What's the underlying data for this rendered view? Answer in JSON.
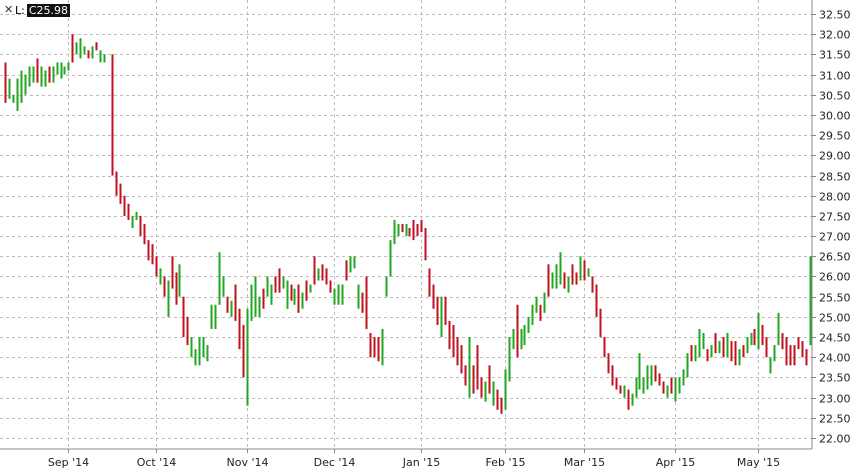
{
  "legend": {
    "close_icon": "close-x-icon",
    "symbol": "L:",
    "value": "C25.98"
  },
  "colors": {
    "up": "#22a722",
    "down": "#c0111f",
    "grid": "#bdbdbd",
    "frame": "#888888"
  },
  "chart_data": {
    "type": "ohlc",
    "ylim": [
      21.75,
      32.75
    ],
    "y_ticks": [
      "22.00",
      "22.50",
      "23.00",
      "23.50",
      "24.00",
      "24.50",
      "25.00",
      "25.50",
      "26.00",
      "26.50",
      "27.00",
      "27.50",
      "28.00",
      "28.50",
      "29.00",
      "29.50",
      "30.00",
      "30.50",
      "31.00",
      "31.50",
      "32.00",
      "32.50"
    ],
    "x_ticks": [
      {
        "label": "Sep '14",
        "bar": 17
      },
      {
        "label": "Oct '14",
        "bar": 39
      },
      {
        "label": "Nov '14",
        "bar": 62
      },
      {
        "label": "Dec '14",
        "bar": 84
      },
      {
        "label": "Jan '15",
        "bar": 106
      },
      {
        "label": "Feb '15",
        "bar": 127
      },
      {
        "label": "Mar '15",
        "bar": 147
      },
      {
        "label": "Apr '15",
        "bar": 170
      },
      {
        "label": "May '15",
        "bar": 191
      }
    ],
    "bar_count": 204,
    "bars": [
      [
        1,
        31.3,
        30.3,
        "d"
      ],
      [
        2,
        30.9,
        30.4,
        "u"
      ],
      [
        3,
        30.5,
        30.3,
        "u"
      ],
      [
        4,
        30.9,
        30.1,
        "u"
      ],
      [
        5,
        31.1,
        30.3,
        "u"
      ],
      [
        6,
        31.0,
        30.5,
        "u"
      ],
      [
        7,
        31.2,
        30.7,
        "u"
      ],
      [
        8,
        31.2,
        30.8,
        "u"
      ],
      [
        9,
        31.4,
        30.8,
        "d"
      ],
      [
        10,
        31.2,
        30.7,
        "u"
      ],
      [
        11,
        31.1,
        30.7,
        "u"
      ],
      [
        12,
        31.2,
        30.8,
        "d"
      ],
      [
        13,
        31.2,
        30.8,
        "u"
      ],
      [
        14,
        31.3,
        31.0,
        "u"
      ],
      [
        15,
        31.3,
        30.9,
        "u"
      ],
      [
        16,
        31.2,
        31.0,
        "u"
      ],
      [
        17,
        31.3,
        31.1,
        "u"
      ],
      [
        18,
        32.0,
        31.3,
        "d"
      ],
      [
        19,
        31.8,
        31.5,
        "u"
      ],
      [
        20,
        31.9,
        31.4,
        "u"
      ],
      [
        21,
        31.7,
        31.5,
        "u"
      ],
      [
        22,
        31.6,
        31.4,
        "d"
      ],
      [
        23,
        31.7,
        31.4,
        "u"
      ],
      [
        24,
        31.8,
        31.6,
        "d"
      ],
      [
        25,
        31.6,
        31.3,
        "u"
      ],
      [
        26,
        31.5,
        31.3,
        "u"
      ],
      [
        27,
        31.3,
        31.3,
        "d"
      ],
      [
        28,
        31.5,
        28.5,
        "d"
      ],
      [
        29,
        28.6,
        28.0,
        "d"
      ],
      [
        30,
        28.3,
        27.8,
        "d"
      ],
      [
        31,
        28.0,
        27.5,
        "d"
      ],
      [
        32,
        27.8,
        27.4,
        "d"
      ],
      [
        33,
        27.5,
        27.2,
        "u"
      ],
      [
        34,
        27.6,
        27.4,
        "u"
      ],
      [
        35,
        27.5,
        27.0,
        "d"
      ],
      [
        36,
        27.3,
        26.8,
        "d"
      ],
      [
        37,
        26.9,
        26.4,
        "d"
      ],
      [
        38,
        26.8,
        26.3,
        "d"
      ],
      [
        39,
        26.5,
        26.0,
        "d"
      ],
      [
        40,
        26.2,
        25.8,
        "u"
      ],
      [
        41,
        26.0,
        25.5,
        "d"
      ],
      [
        42,
        25.9,
        25.0,
        "u"
      ],
      [
        43,
        26.5,
        25.7,
        "d"
      ],
      [
        44,
        26.1,
        25.3,
        "d"
      ],
      [
        45,
        26.3,
        25.5,
        "u"
      ],
      [
        46,
        25.5,
        24.5,
        "d"
      ],
      [
        47,
        25.0,
        24.3,
        "d"
      ],
      [
        48,
        24.5,
        24.0,
        "u"
      ],
      [
        49,
        24.2,
        23.8,
        "u"
      ],
      [
        50,
        24.5,
        23.8,
        "u"
      ],
      [
        51,
        24.5,
        24.0,
        "u"
      ],
      [
        52,
        24.3,
        23.9,
        "u"
      ],
      [
        53,
        25.3,
        24.7,
        "u"
      ],
      [
        54,
        25.3,
        24.7,
        "u"
      ],
      [
        55,
        26.6,
        25.3,
        "u"
      ],
      [
        56,
        26.0,
        25.5,
        "u"
      ],
      [
        57,
        25.5,
        25.1,
        "d"
      ],
      [
        58,
        25.4,
        25.0,
        "u"
      ],
      [
        59,
        25.8,
        24.9,
        "d"
      ],
      [
        60,
        25.2,
        24.2,
        "d"
      ],
      [
        61,
        24.8,
        23.5,
        "d"
      ],
      [
        62,
        25.2,
        22.8,
        "u"
      ],
      [
        63,
        25.8,
        24.9,
        "u"
      ],
      [
        64,
        26.0,
        25.0,
        "u"
      ],
      [
        65,
        25.5,
        25.0,
        "u"
      ],
      [
        66,
        25.7,
        25.2,
        "d"
      ],
      [
        67,
        26.0,
        25.5,
        "u"
      ],
      [
        68,
        25.8,
        25.3,
        "u"
      ],
      [
        69,
        26.0,
        25.6,
        "d"
      ],
      [
        70,
        26.2,
        25.6,
        "d"
      ],
      [
        71,
        26.0,
        25.7,
        "u"
      ],
      [
        72,
        25.9,
        25.2,
        "u"
      ],
      [
        73,
        25.8,
        25.4,
        "d"
      ],
      [
        74,
        25.7,
        25.3,
        "u"
      ],
      [
        75,
        25.8,
        25.1,
        "d"
      ],
      [
        76,
        25.6,
        25.2,
        "u"
      ],
      [
        77,
        25.9,
        25.4,
        "d"
      ],
      [
        78,
        25.8,
        25.6,
        "u"
      ],
      [
        79,
        26.5,
        25.8,
        "d"
      ],
      [
        80,
        26.2,
        25.9,
        "u"
      ],
      [
        81,
        26.3,
        25.9,
        "d"
      ],
      [
        82,
        26.2,
        25.8,
        "d"
      ],
      [
        83,
        25.9,
        25.6,
        "d"
      ],
      [
        84,
        25.7,
        25.3,
        "u"
      ],
      [
        85,
        25.8,
        25.3,
        "u"
      ],
      [
        86,
        25.8,
        25.3,
        "u"
      ],
      [
        87,
        26.4,
        25.9,
        "d"
      ],
      [
        88,
        26.5,
        26.1,
        "u"
      ],
      [
        89,
        26.5,
        26.2,
        "u"
      ],
      [
        90,
        25.8,
        25.2,
        "u"
      ],
      [
        91,
        25.6,
        25.1,
        "d"
      ],
      [
        92,
        26.0,
        24.7,
        "d"
      ],
      [
        93,
        24.6,
        24.0,
        "d"
      ],
      [
        94,
        24.5,
        24.0,
        "d"
      ],
      [
        95,
        24.5,
        23.9,
        "d"
      ],
      [
        96,
        24.7,
        23.8,
        "u"
      ],
      [
        97,
        26.0,
        25.5,
        "u"
      ],
      [
        98,
        26.9,
        26.0,
        "u"
      ],
      [
        99,
        27.4,
        26.8,
        "u"
      ],
      [
        100,
        27.3,
        27.0,
        "u"
      ],
      [
        101,
        27.3,
        27.1,
        "d"
      ],
      [
        102,
        27.3,
        27.0,
        "u"
      ],
      [
        103,
        27.2,
        27.0,
        "d"
      ],
      [
        104,
        27.4,
        26.9,
        "d"
      ],
      [
        105,
        27.3,
        27.0,
        "d"
      ],
      [
        106,
        27.4,
        27.1,
        "d"
      ],
      [
        107,
        27.2,
        26.4,
        "d"
      ],
      [
        108,
        26.2,
        25.5,
        "d"
      ],
      [
        109,
        25.8,
        25.2,
        "d"
      ],
      [
        110,
        25.5,
        24.8,
        "d"
      ],
      [
        111,
        25.5,
        24.5,
        "u"
      ],
      [
        112,
        25.5,
        24.8,
        "d"
      ],
      [
        113,
        24.9,
        24.2,
        "d"
      ],
      [
        114,
        24.8,
        24.0,
        "d"
      ],
      [
        115,
        24.5,
        23.8,
        "d"
      ],
      [
        116,
        24.3,
        23.6,
        "d"
      ],
      [
        117,
        23.8,
        23.3,
        "d"
      ],
      [
        118,
        24.5,
        23.0,
        "u"
      ],
      [
        119,
        23.8,
        23.1,
        "d"
      ],
      [
        120,
        24.3,
        23.2,
        "d"
      ],
      [
        121,
        23.5,
        23.0,
        "d"
      ],
      [
        122,
        23.4,
        22.9,
        "u"
      ],
      [
        123,
        23.8,
        23.1,
        "d"
      ],
      [
        124,
        23.4,
        22.8,
        "u"
      ],
      [
        125,
        23.2,
        22.7,
        "d"
      ],
      [
        126,
        23.0,
        22.6,
        "d"
      ],
      [
        127,
        23.7,
        22.7,
        "u"
      ],
      [
        128,
        24.5,
        23.4,
        "u"
      ],
      [
        129,
        24.7,
        24.2,
        "u"
      ],
      [
        130,
        25.3,
        24.0,
        "d"
      ],
      [
        131,
        24.7,
        24.2,
        "u"
      ],
      [
        132,
        24.8,
        24.3,
        "u"
      ],
      [
        133,
        25.0,
        24.6,
        "u"
      ],
      [
        134,
        25.3,
        24.8,
        "u"
      ],
      [
        135,
        25.5,
        25.1,
        "u"
      ],
      [
        136,
        25.3,
        24.9,
        "d"
      ],
      [
        137,
        25.6,
        25.1,
        "u"
      ],
      [
        138,
        26.3,
        25.5,
        "d"
      ],
      [
        139,
        26.1,
        25.7,
        "u"
      ],
      [
        140,
        26.3,
        25.7,
        "u"
      ],
      [
        141,
        26.6,
        25.8,
        "u"
      ],
      [
        142,
        26.1,
        25.7,
        "d"
      ],
      [
        143,
        26.0,
        25.6,
        "u"
      ],
      [
        144,
        26.3,
        25.8,
        "d"
      ],
      [
        145,
        26.1,
        25.8,
        "d"
      ],
      [
        146,
        26.5,
        25.9,
        "u"
      ],
      [
        147,
        26.4,
        25.9,
        "d"
      ],
      [
        148,
        26.2,
        26.0,
        "u"
      ],
      [
        149,
        26.0,
        25.6,
        "d"
      ],
      [
        150,
        25.8,
        25.0,
        "d"
      ],
      [
        151,
        25.2,
        24.5,
        "d"
      ],
      [
        152,
        24.5,
        24.0,
        "d"
      ],
      [
        153,
        24.1,
        23.6,
        "d"
      ],
      [
        154,
        23.8,
        23.3,
        "d"
      ],
      [
        155,
        23.5,
        23.2,
        "d"
      ],
      [
        156,
        23.3,
        23.1,
        "d"
      ],
      [
        157,
        23.3,
        23.0,
        "u"
      ],
      [
        158,
        23.2,
        22.7,
        "d"
      ],
      [
        159,
        23.1,
        22.8,
        "u"
      ],
      [
        160,
        23.5,
        23.0,
        "u"
      ],
      [
        161,
        24.1,
        23.2,
        "u"
      ],
      [
        162,
        23.5,
        23.1,
        "u"
      ],
      [
        163,
        23.8,
        23.2,
        "u"
      ],
      [
        164,
        23.8,
        23.3,
        "u"
      ],
      [
        165,
        23.8,
        23.4,
        "d"
      ],
      [
        166,
        23.6,
        23.3,
        "d"
      ],
      [
        167,
        23.4,
        23.1,
        "d"
      ],
      [
        168,
        23.3,
        23.0,
        "u"
      ],
      [
        169,
        23.5,
        23.1,
        "d"
      ],
      [
        170,
        23.5,
        22.9,
        "u"
      ],
      [
        171,
        23.5,
        23.1,
        "u"
      ],
      [
        172,
        23.7,
        23.3,
        "u"
      ],
      [
        173,
        24.1,
        23.5,
        "u"
      ],
      [
        174,
        24.3,
        23.9,
        "d"
      ],
      [
        175,
        24.3,
        23.9,
        "u"
      ],
      [
        176,
        24.7,
        24.0,
        "u"
      ],
      [
        177,
        24.6,
        24.2,
        "u"
      ],
      [
        178,
        24.2,
        23.9,
        "d"
      ],
      [
        179,
        24.3,
        24.0,
        "u"
      ],
      [
        180,
        24.6,
        24.1,
        "d"
      ],
      [
        181,
        24.4,
        24.1,
        "u"
      ],
      [
        182,
        24.5,
        24.0,
        "d"
      ],
      [
        183,
        24.6,
        24.0,
        "u"
      ],
      [
        184,
        24.4,
        23.9,
        "d"
      ],
      [
        185,
        24.4,
        23.8,
        "d"
      ],
      [
        186,
        24.2,
        23.8,
        "u"
      ],
      [
        187,
        24.3,
        24.0,
        "d"
      ],
      [
        188,
        24.5,
        24.1,
        "u"
      ],
      [
        189,
        24.6,
        24.3,
        "u"
      ],
      [
        190,
        24.7,
        24.3,
        "d"
      ],
      [
        191,
        25.1,
        24.2,
        "u"
      ],
      [
        192,
        24.8,
        24.3,
        "d"
      ],
      [
        193,
        24.5,
        24.0,
        "d"
      ],
      [
        194,
        24.0,
        23.6,
        "u"
      ],
      [
        195,
        24.3,
        23.9,
        "u"
      ],
      [
        196,
        25.1,
        24.3,
        "u"
      ],
      [
        197,
        24.6,
        24.2,
        "d"
      ],
      [
        198,
        24.5,
        23.8,
        "d"
      ],
      [
        199,
        24.3,
        23.8,
        "d"
      ],
      [
        200,
        24.3,
        23.8,
        "d"
      ],
      [
        201,
        24.5,
        24.2,
        "d"
      ],
      [
        202,
        24.4,
        24.0,
        "d"
      ],
      [
        203,
        24.2,
        23.8,
        "d"
      ],
      [
        204,
        26.5,
        24.3,
        "u"
      ]
    ]
  }
}
